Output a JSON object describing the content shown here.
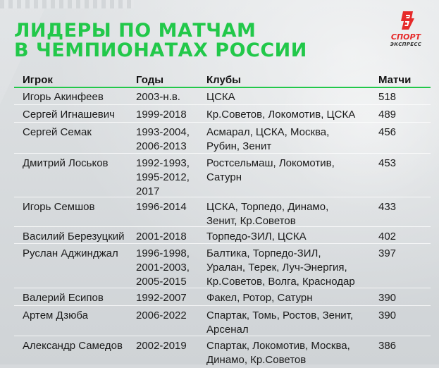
{
  "title": {
    "line1": "ЛИДЕРЫ ПО МАТЧАМ",
    "line2": "В ЧЕМПИОНАТАХ РОССИИ",
    "color": "#22c84a"
  },
  "logo": {
    "brand_line1": "СПОРТ",
    "brand_line2": "ЭКСПРЕСС",
    "icon": "sport-express-logo"
  },
  "table": {
    "headers": [
      "Игрок",
      "Годы",
      "Клубы",
      "Матчи"
    ],
    "rows": [
      {
        "player": "Игорь Акинфеев",
        "years": "2003-н.в.",
        "clubs": "ЦСКА",
        "matches": "518"
      },
      {
        "player": "Сергей Игнашевич",
        "years": "1999-2018",
        "clubs": "Кр.Советов, Локомотив, ЦСКА",
        "matches": "489"
      },
      {
        "player": "Сергей Семак",
        "years": "1993-2004,\n2006-2013",
        "clubs": "Асмарал, ЦСКА, Москва,\nРубин, Зенит",
        "matches": "456"
      },
      {
        "player": "Дмитрий Лоськов",
        "years": "1992-1993,\n1995-2012,\n2017",
        "clubs": "Ростсельмаш, Локомотив,\nСатурн",
        "matches": "453"
      },
      {
        "player": "Игорь Семшов",
        "years": "1996-2014",
        "clubs": "ЦСКА, Торпедо, Динамо,\nЗенит, Кр.Советов",
        "matches": "433"
      },
      {
        "player": "Василий Березуцкий",
        "years": "2001-2018",
        "clubs": "Торпедо-ЗИЛ, ЦСКА",
        "matches": "402"
      },
      {
        "player": "Руслан Аджинджал",
        "years": "1996-1998,\n2001-2003,\n2005-2015",
        "clubs": "Балтика, Торпедо-ЗИЛ,\nУралан, Терек, Луч-Энергия,\nКр.Советов, Волга, Краснодар",
        "matches": "397"
      },
      {
        "player": "Валерий Есипов",
        "years": "1992-2007",
        "clubs": "Факел, Ротор, Сатурн",
        "matches": "390"
      },
      {
        "player": "Артем Дзюба",
        "years": "2006-2022",
        "clubs": "Спартак, Томь, Ростов, Зенит,\nАрсенал",
        "matches": "390"
      },
      {
        "player": "Александр Самедов",
        "years": "2002-2019",
        "clubs": "Спартак, Локомотив, Москва,\nДинамо, Кр.Советов",
        "matches": "386"
      }
    ]
  }
}
